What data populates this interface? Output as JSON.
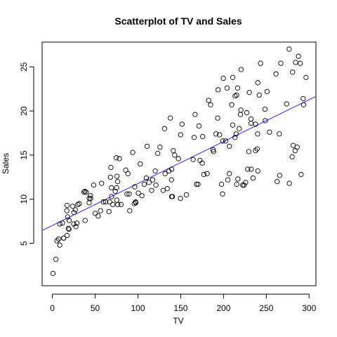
{
  "chart_data": {
    "type": "scatter",
    "title": "Scatterplot of TV  and Sales",
    "xlabel": "TV",
    "ylabel": "Sales",
    "xlim": [
      -12,
      308
    ],
    "ylim": [
      0.2,
      27.8
    ],
    "x_ticks": [
      0,
      50,
      100,
      150,
      200,
      250,
      300
    ],
    "y_ticks": [
      5,
      10,
      15,
      20,
      25
    ],
    "grid": false,
    "legend": "none",
    "colors": {
      "points": "#000000",
      "fit_line": "#3b3bff"
    },
    "fit_line": {
      "intercept": 7.03,
      "slope": 0.0475
    },
    "points": [
      [
        0.7,
        1.6
      ],
      [
        4.1,
        3.2
      ],
      [
        5.4,
        5.3
      ],
      [
        7.3,
        5.5
      ],
      [
        8.6,
        4.8
      ],
      [
        8.7,
        7.2
      ],
      [
        11.7,
        7.3
      ],
      [
        13.1,
        5.6
      ],
      [
        13.2,
        5.6
      ],
      [
        17.2,
        5.9
      ],
      [
        16.9,
        8.7
      ],
      [
        17.9,
        8.0
      ],
      [
        18.7,
        6.7
      ],
      [
        17.2,
        9.3
      ],
      [
        19.4,
        6.6
      ],
      [
        19.6,
        7.6
      ],
      [
        23.8,
        9.2
      ],
      [
        25.0,
        7.2
      ],
      [
        25.1,
        8.5
      ],
      [
        26.8,
        8.8
      ],
      [
        27.5,
        6.9
      ],
      [
        28.6,
        7.3
      ],
      [
        29.7,
        9.4
      ],
      [
        31.5,
        9.5
      ],
      [
        36.9,
        10.8
      ],
      [
        38.0,
        10.9
      ],
      [
        38.2,
        7.6
      ],
      [
        39.5,
        10.8
      ],
      [
        43.0,
        9.6
      ],
      [
        43.1,
        10.1
      ],
      [
        44.5,
        10.4
      ],
      [
        44.7,
        10.1
      ],
      [
        48.3,
        11.6
      ],
      [
        50.0,
        8.4
      ],
      [
        53.5,
        8.1
      ],
      [
        56.2,
        8.7
      ],
      [
        57.5,
        11.8
      ],
      [
        59.6,
        9.7
      ],
      [
        62.3,
        9.7
      ],
      [
        66.1,
        8.6
      ],
      [
        66.9,
        9.7
      ],
      [
        67.8,
        12.5
      ],
      [
        68.4,
        13.6
      ],
      [
        69.0,
        11.3
      ],
      [
        69.2,
        10.3
      ],
      [
        70.6,
        9.4
      ],
      [
        73.4,
        10.9
      ],
      [
        74.7,
        14.7
      ],
      [
        75.1,
        11.3
      ],
      [
        75.3,
        9.9
      ],
      [
        75.5,
        12.6
      ],
      [
        76.3,
        12.0
      ],
      [
        76.4,
        9.4
      ],
      [
        78.2,
        14.6
      ],
      [
        80.2,
        9.4
      ],
      [
        85.7,
        13.3
      ],
      [
        87.2,
        10.6
      ],
      [
        88.3,
        12.9
      ],
      [
        89.7,
        10.6
      ],
      [
        90.4,
        8.7
      ],
      [
        93.9,
        15.3
      ],
      [
        95.7,
        9.5
      ],
      [
        96.2,
        11.4
      ],
      [
        97.2,
        9.7
      ],
      [
        97.5,
        9.6
      ],
      [
        100.4,
        10.7
      ],
      [
        102.7,
        14.0
      ],
      [
        104.6,
        10.4
      ],
      [
        107.4,
        11.7
      ],
      [
        109.8,
        12.4
      ],
      [
        110.7,
        16.0
      ],
      [
        112.9,
        11.9
      ],
      [
        116.0,
        11.0
      ],
      [
        117.2,
        12.2
      ],
      [
        120.2,
        13.2
      ],
      [
        121.0,
        11.6
      ],
      [
        123.1,
        15.2
      ],
      [
        125.7,
        15.9
      ],
      [
        129.4,
        11.0
      ],
      [
        131.1,
        18.0
      ],
      [
        131.7,
        12.9
      ],
      [
        134.3,
        11.2
      ],
      [
        136.2,
        13.2
      ],
      [
        137.9,
        19.2
      ],
      [
        139.2,
        12.2
      ],
      [
        139.3,
        10.3
      ],
      [
        139.5,
        13.4
      ],
      [
        140.3,
        10.3
      ],
      [
        141.3,
        15.5
      ],
      [
        142.9,
        15.0
      ],
      [
        147.3,
        14.6
      ],
      [
        149.7,
        10.1
      ],
      [
        149.8,
        17.3
      ],
      [
        151.5,
        18.5
      ],
      [
        156.6,
        10.5
      ],
      [
        164.5,
        14.5
      ],
      [
        165.6,
        17.0
      ],
      [
        166.8,
        19.6
      ],
      [
        168.4,
        11.7
      ],
      [
        170.2,
        11.7
      ],
      [
        171.3,
        18.3
      ],
      [
        172.5,
        14.4
      ],
      [
        175.1,
        14.1
      ],
      [
        175.7,
        17.1
      ],
      [
        177.0,
        12.8
      ],
      [
        180.8,
        12.9
      ],
      [
        182.6,
        21.2
      ],
      [
        184.9,
        20.7
      ],
      [
        187.8,
        15.6
      ],
      [
        188.4,
        15.4
      ],
      [
        191.1,
        17.4
      ],
      [
        193.2,
        19.2
      ],
      [
        193.7,
        22.4
      ],
      [
        195.4,
        17.3
      ],
      [
        197.6,
        11.7
      ],
      [
        198.9,
        10.6
      ],
      [
        199.1,
        16.6
      ],
      [
        199.8,
        23.7
      ],
      [
        202.5,
        16.6
      ],
      [
        204.1,
        22.6
      ],
      [
        205.0,
        12.2
      ],
      [
        206.8,
        12.9
      ],
      [
        206.9,
        16.0
      ],
      [
        210.7,
        18.4
      ],
      [
        210.8,
        23.8
      ],
      [
        213.4,
        17.0
      ],
      [
        214.7,
        17.4
      ],
      [
        215.4,
        21.8
      ],
      [
        216.4,
        22.6
      ],
      [
        216.8,
        12.3
      ],
      [
        218.4,
        18.0
      ],
      [
        219.8,
        19.6
      ],
      [
        220.3,
        20.1
      ],
      [
        220.5,
        24.7
      ],
      [
        222.4,
        11.6
      ],
      [
        224.0,
        11.6
      ],
      [
        225.8,
        11.9
      ],
      [
        227.2,
        19.8
      ],
      [
        228.3,
        13.4
      ],
      [
        229.5,
        15.4
      ],
      [
        230.1,
        22.1
      ],
      [
        232.1,
        18.6
      ],
      [
        232.4,
        13.4
      ],
      [
        234.5,
        12.4
      ],
      [
        237.4,
        15.5
      ],
      [
        239.3,
        15.7
      ],
      [
        239.8,
        17.4
      ],
      [
        240.1,
        13.2
      ],
      [
        240.1,
        23.2
      ],
      [
        241.7,
        21.8
      ],
      [
        243.2,
        25.4
      ],
      [
        248.4,
        20.2
      ],
      [
        248.8,
        18.9
      ],
      [
        250.9,
        22.2
      ],
      [
        253.8,
        17.6
      ],
      [
        261.3,
        24.2
      ],
      [
        262.7,
        12.0
      ],
      [
        265.2,
        17.4
      ],
      [
        265.6,
        12.7
      ],
      [
        266.9,
        25.4
      ],
      [
        273.7,
        20.8
      ],
      [
        276.7,
        27.0
      ],
      [
        276.9,
        11.8
      ],
      [
        280.7,
        24.4
      ],
      [
        281.4,
        16.1
      ],
      [
        283.6,
        15.5
      ],
      [
        284.3,
        25.5
      ],
      [
        286.0,
        15.9
      ],
      [
        287.6,
        26.2
      ],
      [
        289.7,
        25.4
      ],
      [
        290.7,
        12.8
      ],
      [
        293.6,
        20.7
      ],
      [
        293.1,
        21.4
      ],
      [
        296.4,
        23.8
      ],
      [
        280.2,
        14.8
      ],
      [
        232.1,
        19.1
      ],
      [
        209.6,
        20.7
      ],
      [
        213.5,
        21.7
      ],
      [
        215.4,
        11.7
      ],
      [
        237.4,
        18.5
      ]
    ]
  }
}
